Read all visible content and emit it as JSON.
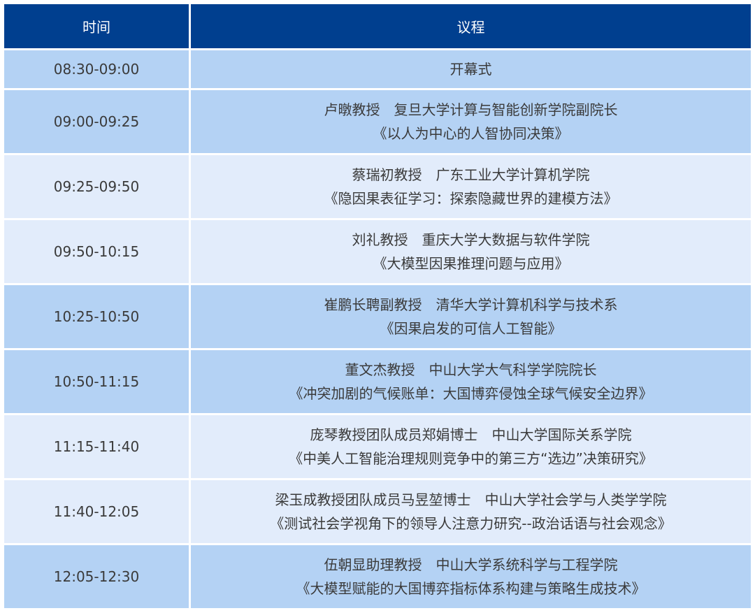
{
  "header": {
    "time": "时间",
    "agenda": "议程"
  },
  "colors": {
    "header_bg": "#003f8f",
    "row_dark": "#b4d2f4",
    "row_light": "#e2ecfb"
  },
  "rows": [
    {
      "time": "08:30-09:00",
      "speaker": "开幕式",
      "title": "",
      "shade": "dark"
    },
    {
      "time": "09:00-09:25",
      "speaker": "卢暾教授　复旦大学计算与智能创新学院副院长",
      "title": "《以人为中心的人智协同决策》",
      "shade": "dark"
    },
    {
      "time": "09:25-09:50",
      "speaker": "蔡瑞初教授　广东工业大学计算机学院",
      "title": "《隐因果表征学习：探索隐藏世界的建模方法》",
      "shade": "light"
    },
    {
      "time": "09:50-10:15",
      "speaker": "刘礼教授　重庆大学大数据与软件学院",
      "title": "《大模型因果推理问题与应用》",
      "shade": "light"
    },
    {
      "time": "10:25-10:50",
      "speaker": "崔鹏长聘副教授　清华大学计算机科学与技术系",
      "title": "《因果启发的可信人工智能》",
      "shade": "dark"
    },
    {
      "time": "10:50-11:15",
      "speaker": "董文杰教授　中山大学大气科学学院院长",
      "title": "《冲突加剧的气候账单：大国博弈侵蚀全球气候安全边界》",
      "shade": "dark"
    },
    {
      "time": "11:15-11:40",
      "speaker": "庞琴教授团队成员郑娟博士　中山大学国际关系学院",
      "title": "《中美人工智能治理规则竞争中的第三方“选边”决策研究》",
      "shade": "light"
    },
    {
      "time": "11:40-12:05",
      "speaker": "梁玉成教授团队成员马昱堃博士　中山大学社会学与人类学学院",
      "title": "《测试社会学视角下的领导人注意力研究--政治话语与社会观念》",
      "shade": "light"
    },
    {
      "time": "12:05-12:30",
      "speaker": "伍朝显助理教授　中山大学系统科学与工程学院",
      "title": "《大模型赋能的大国博弈指标体系构建与策略生成技术》",
      "shade": "dark"
    }
  ]
}
